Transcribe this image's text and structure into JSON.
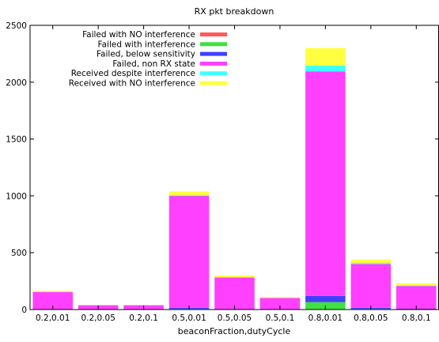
{
  "chart_data": {
    "type": "bar",
    "stacked": true,
    "title": "RX pkt breakdown",
    "xlabel": "beaconFraction,dutyCycle",
    "ylabel": "",
    "ylim": [
      0,
      2500
    ],
    "yticks": [
      0,
      500,
      1000,
      1500,
      2000,
      2500
    ],
    "grid": false,
    "legend_position": "top-left",
    "categories": [
      "0.2,0.01",
      "0.2,0.05",
      "0.2,0.1",
      "0.5,0.01",
      "0.5,0.05",
      "0.5,0.1",
      "0.8,0.01",
      "0.8,0.05",
      "0.8,0.1"
    ],
    "series": [
      {
        "name": "Failed with NO interference",
        "color": "#ff5a5a",
        "values": [
          0,
          0,
          0,
          0,
          0,
          0,
          0,
          0,
          0
        ]
      },
      {
        "name": "Failed with interference",
        "color": "#40e040",
        "values": [
          0,
          0,
          0,
          5,
          0,
          0,
          65,
          5,
          2
        ]
      },
      {
        "name": "Failed, below sensitivity",
        "color": "#4040ff",
        "values": [
          0,
          0,
          0,
          10,
          0,
          0,
          55,
          10,
          5
        ]
      },
      {
        "name": "Failed, non RX state",
        "color": "#ff40ff",
        "values": [
          155,
          38,
          38,
          985,
          282,
          102,
          1975,
          385,
          200
        ]
      },
      {
        "name": "Received despite interference",
        "color": "#40ffff",
        "values": [
          0,
          0,
          0,
          5,
          0,
          0,
          50,
          10,
          5
        ]
      },
      {
        "name": "Received with NO interference",
        "color": "#ffff40",
        "values": [
          10,
          2,
          2,
          35,
          18,
          8,
          155,
          30,
          18
        ]
      }
    ]
  }
}
